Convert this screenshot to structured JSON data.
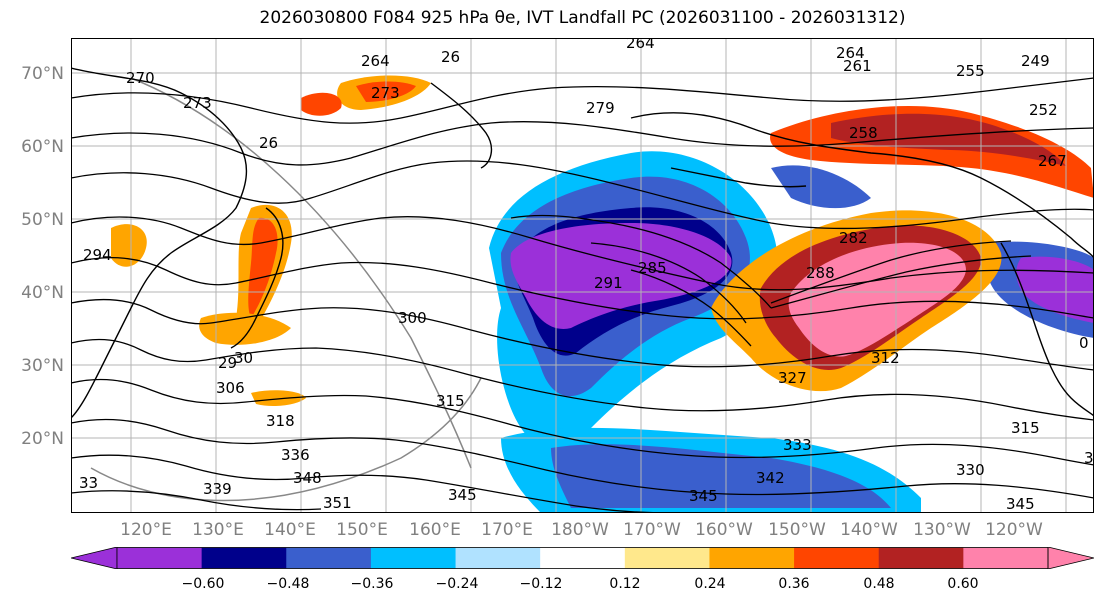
{
  "title": "2026030800 F084 925 hPa θe, IVT Landfall PC (2026031100 - 2026031312)",
  "latitude_labels": [
    "70°N",
    "60°N",
    "50°N",
    "40°N",
    "30°N",
    "20°N"
  ],
  "longitude_labels": [
    "120°E",
    "130°E",
    "140°E",
    "150°E",
    "160°E",
    "170°E",
    "180°W",
    "170°W",
    "160°W",
    "150°W",
    "140°W",
    "130°W",
    "120°W"
  ],
  "colorbar": {
    "ticks": [
      "−0.60",
      "−0.48",
      "−0.36",
      "−0.24",
      "−0.12",
      "0.12",
      "0.24",
      "0.36",
      "0.48",
      "0.60"
    ],
    "colors": [
      "#9b30d9",
      "#00008b",
      "#3a5fcd",
      "#00bfff",
      "#b0e2ff",
      "#ffffff",
      "#ffe88c",
      "#ffa500",
      "#ff4500",
      "#b22222",
      "#ff82ab"
    ],
    "extend": "both"
  },
  "contour_labels": [
    {
      "text": "264"
    },
    {
      "text": "264"
    },
    {
      "text": "26"
    },
    {
      "text": "264"
    },
    {
      "text": "261"
    },
    {
      "text": "255"
    },
    {
      "text": "252"
    },
    {
      "text": "249"
    },
    {
      "text": "270"
    },
    {
      "text": "273"
    },
    {
      "text": "273"
    },
    {
      "text": "279"
    },
    {
      "text": "258"
    },
    {
      "text": "26"
    },
    {
      "text": "267"
    },
    {
      "text": "294"
    },
    {
      "text": "285"
    },
    {
      "text": "282"
    },
    {
      "text": "291"
    },
    {
      "text": "288"
    },
    {
      "text": "300"
    },
    {
      "text": "29"
    },
    {
      "text": "306"
    },
    {
      "text": "318"
    },
    {
      "text": "315"
    },
    {
      "text": "312"
    },
    {
      "text": "327"
    },
    {
      "text": "336"
    },
    {
      "text": "348"
    },
    {
      "text": "339"
    },
    {
      "text": "351"
    },
    {
      "text": "345"
    },
    {
      "text": "333"
    },
    {
      "text": "342"
    },
    {
      "text": "330"
    },
    {
      "text": "315"
    },
    {
      "text": "345"
    },
    {
      "text": "345"
    },
    {
      "text": "33"
    },
    {
      "text": "30"
    },
    {
      "text": "3"
    },
    {
      "text": "0"
    }
  ],
  "color_key": {
    "contour": "#000000",
    "coast": "#000000",
    "grid": "#b4b4b4",
    "axis_label": "#808080"
  }
}
